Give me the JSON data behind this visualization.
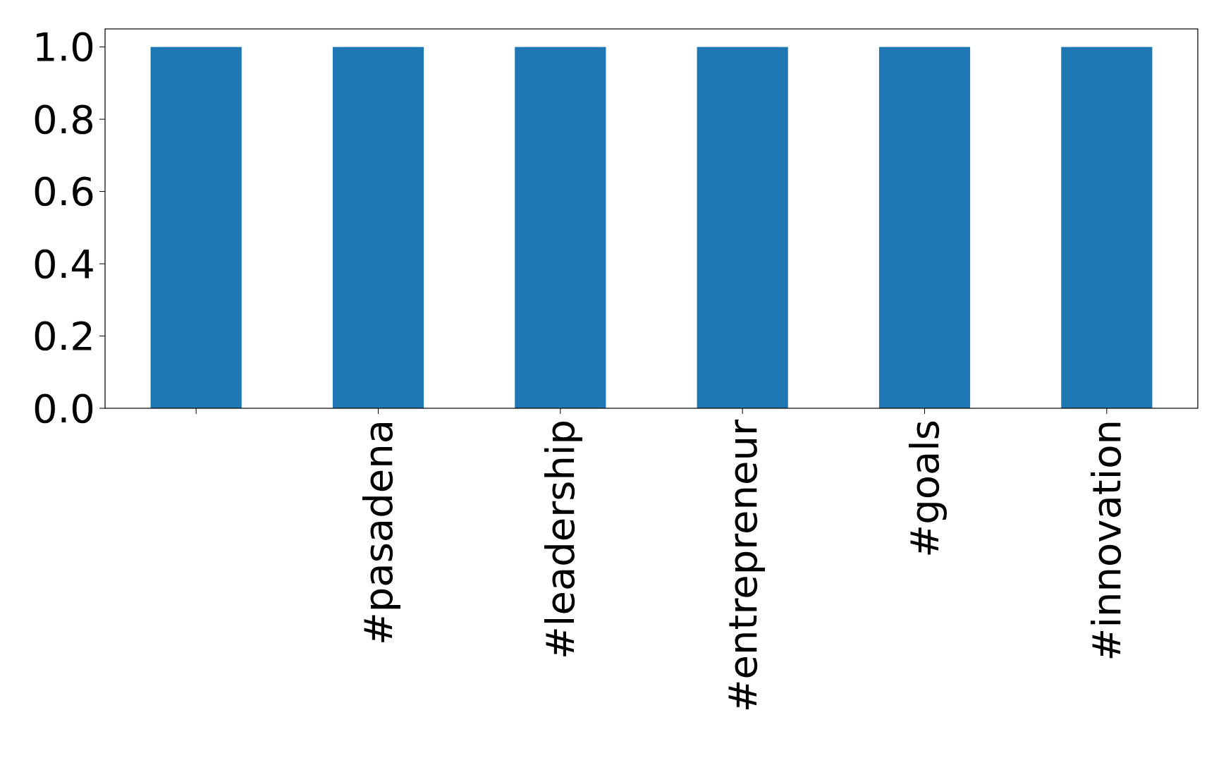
{
  "chart_data": {
    "type": "bar",
    "categories": [
      null,
      "#pasadena",
      "#leadership",
      "#entrepreneur",
      "#goals",
      "#innovation"
    ],
    "values": [
      1,
      1,
      1,
      1,
      1,
      1
    ],
    "color": "#1f77b4",
    "ylim": [
      0,
      1.05
    ],
    "yticks": [
      {
        "value": 0,
        "label": "0.0"
      },
      {
        "value": 0.2,
        "label": "0.2"
      },
      {
        "value": 0.4,
        "label": "0.4"
      },
      {
        "value": 0.6,
        "label": "0.6"
      },
      {
        "value": 0.8,
        "label": "0.8"
      },
      {
        "value": 1,
        "label": "1.0"
      }
    ],
    "grid": false
  }
}
